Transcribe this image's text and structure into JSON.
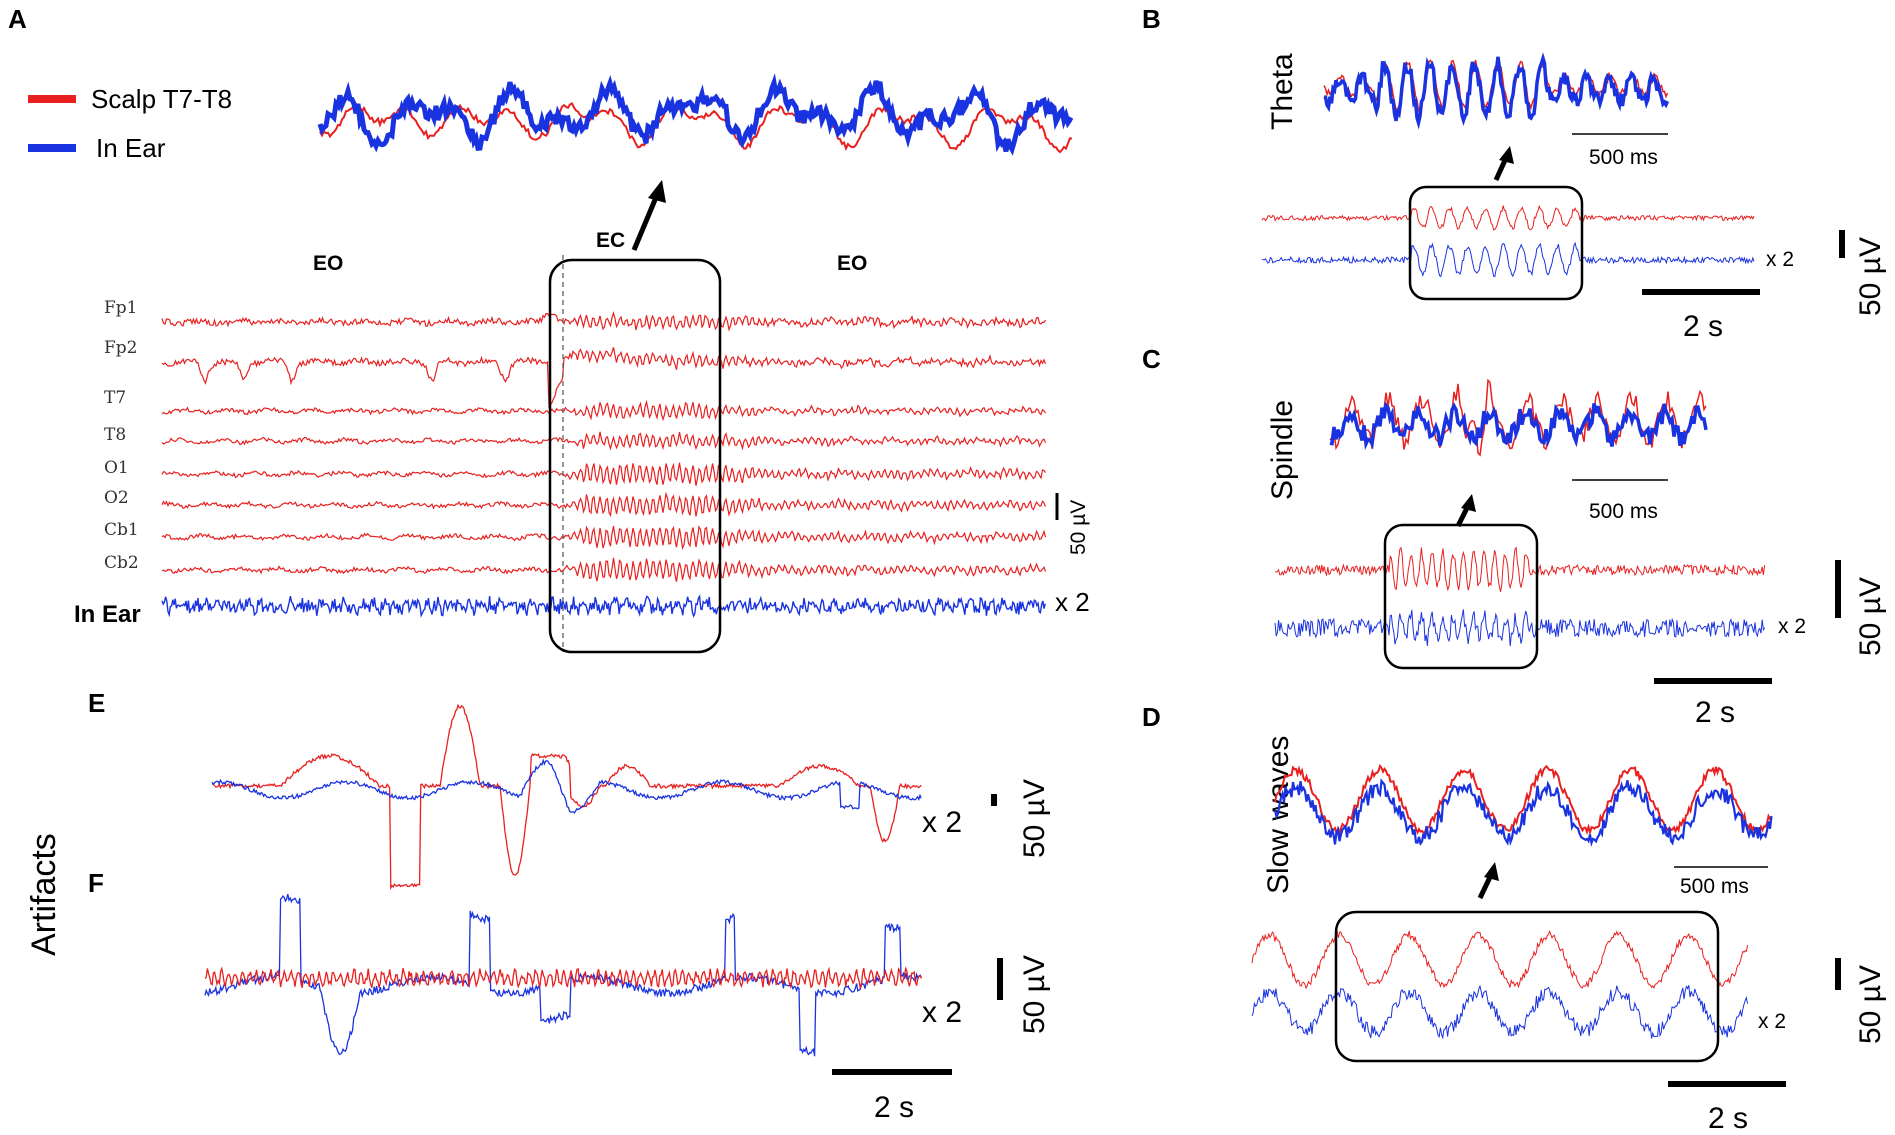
{
  "chart_data": [
    {
      "panel": "A",
      "type": "line",
      "legend": [
        {
          "label": "Scalp T7-T8",
          "color": "#e8201f"
        },
        {
          "label": "In Ear",
          "color": "#1a33e0"
        }
      ],
      "segments": [
        "EO",
        "EC",
        "EO"
      ],
      "channels": [
        "Fp1",
        "Fp2",
        "T7",
        "T8",
        "O1",
        "O2",
        "Cb1",
        "Cb2",
        "In Ear"
      ],
      "scale_bar": "50 µV",
      "gain_label": "x 2"
    },
    {
      "panel": "B",
      "type": "line",
      "title": "Theta",
      "inset_scale": "500 ms",
      "time_scale": "2 s",
      "amp_scale": "50 µV",
      "gain_label": "x 2"
    },
    {
      "panel": "C",
      "type": "line",
      "title": "Spindle",
      "inset_scale": "500 ms",
      "time_scale": "2 s",
      "amp_scale": "50 µV",
      "gain_label": "x 2"
    },
    {
      "panel": "D",
      "type": "line",
      "title": "Slow waves",
      "inset_scale": "500 ms",
      "time_scale": "2 s",
      "amp_scale": "50 µV",
      "gain_label": "x 2"
    },
    {
      "panel": "E",
      "type": "line",
      "group_label": "Artifacts",
      "amp_scale": "50 µV",
      "gain_label": "x 2"
    },
    {
      "panel": "F",
      "type": "line",
      "group_label": "Artifacts",
      "amp_scale": "50 µV",
      "gain_label": "x 2",
      "time_scale": "2 s"
    }
  ],
  "labels": {
    "A": "A",
    "B": "B",
    "C": "C",
    "D": "D",
    "E": "E",
    "F": "F"
  },
  "colors": {
    "scalp": "#e8201f",
    "ear": "#1a33e0"
  }
}
